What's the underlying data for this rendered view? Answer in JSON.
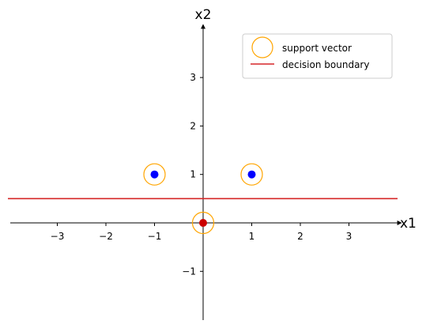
{
  "chart_data": {
    "type": "scatter",
    "xlabel": "x1",
    "ylabel": "x2",
    "xlim": [
      -4,
      4
    ],
    "ylim": [
      -2,
      4
    ],
    "xticks": [
      -3,
      -2,
      -1,
      1,
      2,
      3
    ],
    "yticks": [
      -1,
      1,
      2,
      3
    ],
    "xtick_labels": [
      "−3",
      "−2",
      "−1",
      "1",
      "2",
      "3"
    ],
    "ytick_labels": [
      "−1",
      "1",
      "2",
      "3"
    ],
    "grid": false,
    "legend_placement": "top-right",
    "series": [
      {
        "color": "#0000ff",
        "points": [
          [
            -1,
            1
          ],
          [
            1,
            1
          ]
        ]
      },
      {
        "color": "#cc0000",
        "points": [
          [
            0,
            0
          ]
        ]
      }
    ],
    "support_vectors": {
      "name": "support vector",
      "color": "#ffa500",
      "points": [
        [
          -1,
          1
        ],
        [
          1,
          1
        ],
        [
          0,
          0
        ]
      ]
    },
    "decision_boundary": {
      "name": "decision boundary",
      "color": "#d62728",
      "y": 0.5
    }
  }
}
